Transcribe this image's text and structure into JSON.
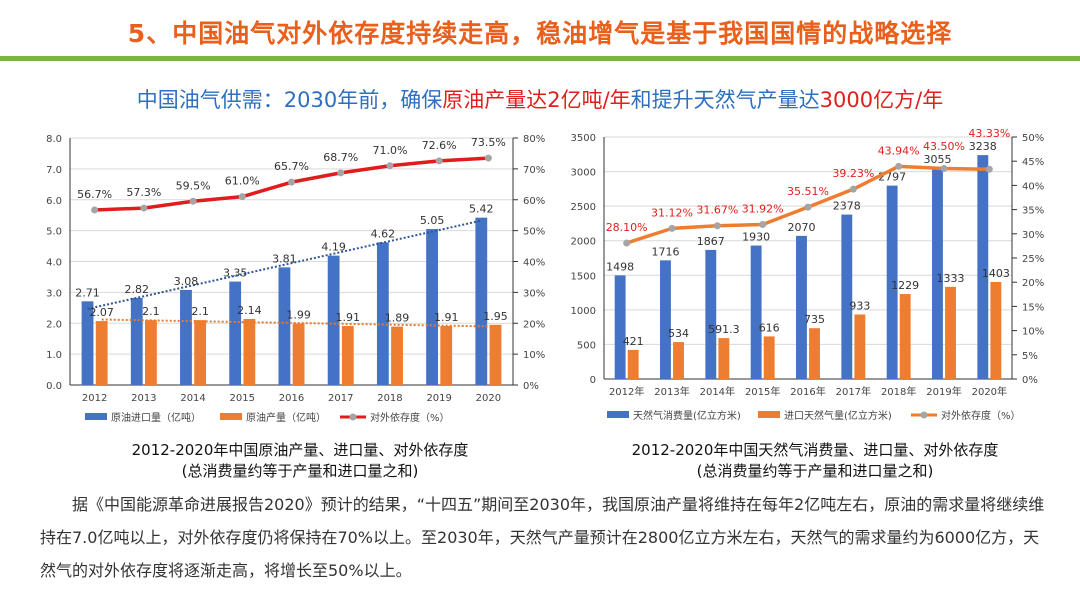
{
  "title": "5、中国油气对外依存度持续走高，稳油增气是基于我国国情的战略选择",
  "subtitle": {
    "p1": "中国油气供需：2030年前，确保",
    "p2": "原油产量达2亿吨/年",
    "p3": "和提升天然气产量达",
    "p4": "3000亿方/年"
  },
  "colors": {
    "title": "#e8601c",
    "rule": "#78b446",
    "blue": "#4472c4",
    "orange": "#ed7d31",
    "red_line": "#e01c1c",
    "marker": "#a5a5a5"
  },
  "chart_data": [
    {
      "type": "bar",
      "categories": [
        "2012",
        "2013",
        "2014",
        "2015",
        "2016",
        "2017",
        "2018",
        "2019",
        "2020"
      ],
      "series": [
        {
          "name": "原油进口量（亿吨）",
          "type": "bar",
          "axis": "left",
          "values": [
            2.71,
            2.82,
            3.08,
            3.35,
            3.81,
            4.19,
            4.62,
            5.05,
            5.42
          ],
          "labels": [
            "2.71",
            "2.82",
            "3.08",
            "3.35",
            "3.81",
            "4.19",
            "4.62",
            "5.05",
            "5.42"
          ],
          "trendline": "linear"
        },
        {
          "name": "原油产量（亿吨）",
          "type": "bar",
          "axis": "left",
          "values": [
            2.07,
            2.1,
            2.1,
            2.14,
            1.99,
            1.91,
            1.89,
            1.91,
            1.95
          ],
          "labels": [
            "2.07",
            "2.1",
            "2.1",
            "2.14",
            "1.99",
            "1.91",
            "1.89",
            "1.91",
            "1.95"
          ],
          "trendline": "linear"
        },
        {
          "name": "对外依存度（%）",
          "type": "line",
          "axis": "right",
          "values": [
            56.7,
            57.3,
            59.5,
            61.0,
            65.7,
            68.7,
            71.0,
            72.6,
            73.5
          ],
          "labels": [
            "56.7%",
            "57.3%",
            "59.5%",
            "61.0%",
            "65.7%",
            "68.7%",
            "71.0%",
            "72.6%",
            "73.5%"
          ]
        }
      ],
      "yticks": [
        "0.0",
        "1.0",
        "2.0",
        "3.0",
        "4.0",
        "5.0",
        "6.0",
        "7.0",
        "8.0"
      ],
      "ylim": [
        0,
        8
      ],
      "y2ticks": [
        "0%",
        "10%",
        "20%",
        "30%",
        "40%",
        "50%",
        "60%",
        "70%",
        "80%"
      ],
      "y2lim": [
        0,
        80
      ],
      "grid": true,
      "legend": "bottom",
      "caption1": "2012-2020年中国原油产量、进口量、对外依存度",
      "caption2": "(总消费量约等于产量和进口量之和)"
    },
    {
      "type": "bar",
      "categories": [
        "2012年",
        "2013年",
        "2014年",
        "2015年",
        "2016年",
        "2017年",
        "2018年",
        "2019年",
        "2020年"
      ],
      "series": [
        {
          "name": "天然气消费量(亿立方米)",
          "type": "bar",
          "axis": "left",
          "values": [
            1498,
            1716,
            1867,
            1930,
            2070,
            2378,
            2797,
            3055,
            3238
          ],
          "labels": [
            "1498",
            "1716",
            "1867",
            "1930",
            "2070",
            "2378",
            "2797",
            "3055",
            "3238"
          ]
        },
        {
          "name": "进口天然气量(亿立方米)",
          "type": "bar",
          "axis": "left",
          "values": [
            421,
            534,
            591.3,
            616,
            735,
            933,
            1229,
            1333,
            1403
          ],
          "labels": [
            "421",
            "534",
            "591.3",
            "616",
            "735",
            "933",
            "1229",
            "1333",
            "1403"
          ]
        },
        {
          "name": "对外依存度（%）",
          "type": "line",
          "axis": "right",
          "values": [
            28.1,
            31.12,
            31.67,
            31.92,
            35.51,
            39.23,
            43.94,
            43.5,
            43.33
          ],
          "labels": [
            "28.10%",
            "31.12%",
            "31.67%",
            "31.92%",
            "35.51%",
            "39.23%",
            "43.94%",
            "43.50%",
            "43.33%"
          ]
        }
      ],
      "yticks": [
        "0",
        "500",
        "1000",
        "1500",
        "2000",
        "2500",
        "3000",
        "3500"
      ],
      "ylim": [
        0,
        3500
      ],
      "y2ticks": [
        "0%",
        "5%",
        "10%",
        "15%",
        "20%",
        "25%",
        "30%",
        "35%",
        "40%",
        "45%",
        "50%"
      ],
      "y2lim": [
        0,
        50
      ],
      "grid": true,
      "legend": "bottom",
      "caption1": "2012-2020年中国天然气消费量、进口量、对外依存度",
      "caption2": "(总消费量约等于产量和进口量之和)"
    }
  ],
  "body": {
    "p1": "据《中国能源革命进展报告2020》预计的结果，“十四五”期间至2030年，我国原油产量将维持在每年2亿吨左右，原油的需求量将继续维持在7.0亿吨以上，对外依存度仍将保持在70%以上。至2030年，天然气产量预计在2800亿立方米左右，天然气的需求量约为6000亿方，天然气的对外依存度将逐渐走高，将增长至50%以上。"
  }
}
